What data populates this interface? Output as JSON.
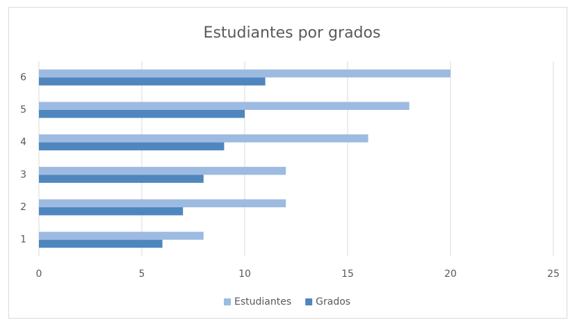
{
  "chart_data": {
    "type": "bar",
    "orientation": "horizontal",
    "title": "Estudiantes por grados",
    "categories": [
      "1",
      "2",
      "3",
      "4",
      "5",
      "6"
    ],
    "series": [
      {
        "name": "Estudiantes",
        "color": "#9dbbe1",
        "values": [
          8,
          12,
          12,
          16,
          18,
          20
        ]
      },
      {
        "name": "Grados",
        "color": "#4f86be",
        "values": [
          6,
          7,
          8,
          9,
          10,
          11
        ]
      }
    ],
    "xlim": [
      0,
      25
    ],
    "xticks": [
      0,
      5,
      10,
      15,
      20,
      25
    ],
    "grid": true,
    "legend": "bottom"
  }
}
